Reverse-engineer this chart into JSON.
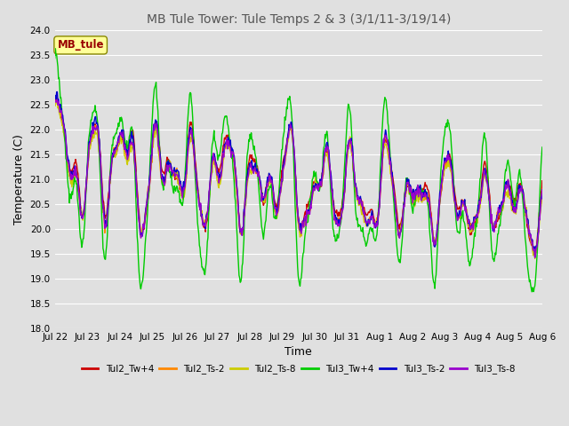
{
  "title": "MB Tule Tower: Tule Temps 2 & 3 (3/1/11-3/19/14)",
  "xlabel": "Time",
  "ylabel": "Temperature (C)",
  "ylim": [
    18.0,
    24.0
  ],
  "yticks": [
    18.0,
    18.5,
    19.0,
    19.5,
    20.0,
    20.5,
    21.0,
    21.5,
    22.0,
    22.5,
    23.0,
    23.5,
    24.0
  ],
  "xtick_labels": [
    "Jul 22",
    "Jul 23",
    "Jul 24",
    "Jul 25",
    "Jul 26",
    "Jul 27",
    "Jul 28",
    "Jul 29",
    "Jul 30",
    "Jul 31",
    "Aug 1",
    "Aug 2",
    "Aug 3",
    "Aug 4",
    "Aug 5",
    "Aug 6"
  ],
  "bg_color": "#e0e0e0",
  "plot_bg_color": "#e0e0e0",
  "grid_color": "#ffffff",
  "legend_box_color": "#ffff99",
  "legend_box_text": "MB_tule",
  "legend_box_text_color": "#990000",
  "series": [
    {
      "label": "Tul2_Tw+4",
      "color": "#cc0000",
      "lw": 1.0
    },
    {
      "label": "Tul2_Ts-2",
      "color": "#ff8800",
      "lw": 1.0
    },
    {
      "label": "Tul2_Ts-8",
      "color": "#cccc00",
      "lw": 1.0
    },
    {
      "label": "Tul3_Tw+4",
      "color": "#00cc00",
      "lw": 1.0
    },
    {
      "label": "Tul3_Ts-2",
      "color": "#0000cc",
      "lw": 1.0
    },
    {
      "label": "Tul3_Ts-8",
      "color": "#9900cc",
      "lw": 1.0
    }
  ]
}
